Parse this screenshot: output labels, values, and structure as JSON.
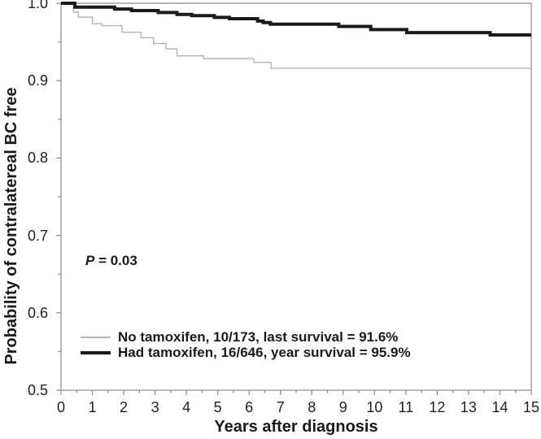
{
  "chart_data": {
    "type": "line",
    "step": true,
    "title": "",
    "xlabel": "Years after diagnosis",
    "ylabel": "Probability of contralatereal BC free",
    "xlim": [
      0,
      15
    ],
    "ylim": [
      0.5,
      1.0
    ],
    "grid": false,
    "x_tick_labels": [
      "0",
      "1",
      "2",
      "3",
      "4",
      "5",
      "6",
      "7",
      "8",
      "9",
      "10",
      "11",
      "12",
      "13",
      "14",
      "15"
    ],
    "x_major_tick_values": [
      0,
      1,
      2,
      3,
      4,
      5,
      6,
      7,
      8,
      9,
      10,
      11,
      12,
      13,
      14,
      15
    ],
    "x_minor_tick_step": 0.5,
    "y_tick_labels": [
      "1.0",
      "0.9",
      "0.8",
      "0.7",
      "0.6",
      "0.5"
    ],
    "y_major_tick_values": [
      1.0,
      0.9,
      0.8,
      0.7,
      0.6,
      0.5
    ],
    "y_minor_tick_step": 0.05,
    "axis_color": "#8a8a8a",
    "annotation": {
      "prefix_italic": "P",
      "text": " = 0.03"
    },
    "legend": {
      "position": "bottom-left-inside",
      "rows": [
        {
          "series_id": "no_tamoxifen",
          "label": "No tamoxifen, 10/173, last survival = 91.6%"
        },
        {
          "series_id": "had_tamoxifen",
          "label": "Had tamoxifen, 16/646, year survival = 95.9%"
        }
      ]
    },
    "series": [
      {
        "id": "no_tamoxifen",
        "name": "No tamoxifen",
        "events_over_n": "10/173",
        "final_survival_pct": 91.6,
        "color": "#b3b3b3",
        "stroke_width": 1.4,
        "steps": [
          [
            0,
            1.0
          ],
          [
            0.4,
            0.9885
          ],
          [
            0.55,
            0.982
          ],
          [
            1.0,
            0.9735
          ],
          [
            1.3,
            0.971
          ],
          [
            1.95,
            0.9625
          ],
          [
            2.55,
            0.9555
          ],
          [
            2.95,
            0.948
          ],
          [
            3.35,
            0.941
          ],
          [
            3.7,
            0.932
          ],
          [
            4.55,
            0.9285
          ],
          [
            6.15,
            0.9235
          ],
          [
            6.7,
            0.916
          ],
          [
            15,
            0.916
          ]
        ]
      },
      {
        "id": "had_tamoxifen",
        "name": "Had tamoxifen",
        "events_over_n": "16/646",
        "final_survival_pct": 95.9,
        "color": "#1a1a1a",
        "stroke_width": 4,
        "steps": [
          [
            0,
            1.0
          ],
          [
            0.44,
            0.995
          ],
          [
            1.71,
            0.9925
          ],
          [
            2.25,
            0.9905
          ],
          [
            3.1,
            0.988
          ],
          [
            3.7,
            0.9855
          ],
          [
            4.17,
            0.984
          ],
          [
            4.89,
            0.9818
          ],
          [
            5.37,
            0.98
          ],
          [
            6.27,
            0.977
          ],
          [
            6.45,
            0.975
          ],
          [
            6.68,
            0.973
          ],
          [
            8.86,
            0.97
          ],
          [
            9.88,
            0.966
          ],
          [
            11.03,
            0.962
          ],
          [
            13.69,
            0.959
          ],
          [
            15,
            0.959
          ]
        ]
      }
    ]
  }
}
